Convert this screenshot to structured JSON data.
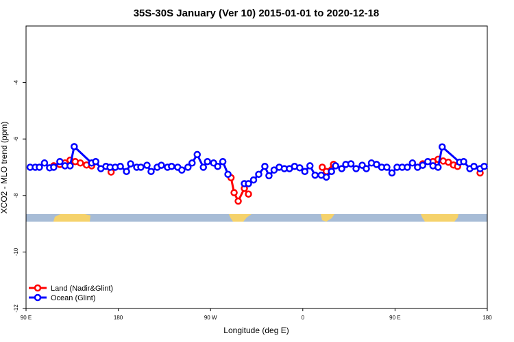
{
  "chart_data": {
    "type": "line",
    "title": "35S-30S January (Ver 10)   2015-01-01 to 2020-12-18",
    "x_label": "Longitude (deg E)",
    "y_label": "XCO2 - MLO trend (ppm)",
    "xlim": [
      90,
      540
    ],
    "xticks": [
      {
        "value": 90,
        "label": "90 E"
      },
      180,
      {
        "value": 270,
        "label": "90 W"
      },
      {
        "value": 360,
        "label": "0"
      },
      {
        "value": 450,
        "label": "90 E"
      },
      {
        "value": 540,
        "label": "180"
      }
    ],
    "ylim": [
      -12,
      -2
    ],
    "yticks": [
      -12,
      -10,
      -8,
      -6,
      -4
    ],
    "legend": "bottom-left",
    "series": [
      {
        "name": "Land (Nadir&Glint)",
        "color": "#ff0000",
        "x": [
          117,
          123,
          128,
          133,
          138,
          143,
          149,
          154,
          null,
          173,
          null,
          290,
          293,
          297,
          303,
          307,
          null,
          379,
          383,
          390,
          null,
          477,
          487,
          492,
          497,
          502,
          507,
          511,
          null,
          533
        ],
        "values": [
          -6.95,
          -6.9,
          -6.85,
          -6.75,
          -6.8,
          -6.85,
          -6.92,
          -6.95,
          null,
          -7.17,
          null,
          -7.37,
          -7.9,
          -8.2,
          -7.75,
          -7.95,
          null,
          -7.0,
          -7.15,
          -6.9,
          null,
          -6.88,
          -6.8,
          -6.72,
          -6.78,
          -6.82,
          -6.92,
          -6.97,
          null,
          -7.2
        ]
      },
      {
        "name": "Ocean (Glint)",
        "color": "#0000ff",
        "x": [
          94,
          99,
          103,
          108,
          113,
          117,
          123,
          128,
          133,
          137,
          154,
          158,
          163,
          168,
          172,
          177,
          182,
          188,
          192,
          198,
          202,
          208,
          212,
          218,
          222,
          228,
          232,
          238,
          242,
          248,
          252,
          257,
          263,
          267,
          273,
          277,
          282,
          287,
          null,
          303,
          307,
          312,
          317,
          323,
          327,
          332,
          337,
          342,
          347,
          352,
          357,
          362,
          367,
          372,
          378,
          383,
          388,
          392,
          398,
          402,
          407,
          412,
          418,
          422,
          427,
          432,
          437,
          442,
          447,
          452,
          457,
          462,
          467,
          472,
          477,
          482,
          487,
          492,
          496,
          513,
          517,
          523,
          527,
          533,
          537
        ],
        "values": [
          -7.0,
          -7.0,
          -7.0,
          -6.85,
          -7.02,
          -7.0,
          -6.8,
          -6.95,
          -6.95,
          -6.27,
          -6.85,
          -6.8,
          -7.05,
          -6.97,
          -7.0,
          -7.0,
          -6.97,
          -7.15,
          -6.88,
          -7.0,
          -7.0,
          -6.93,
          -7.15,
          -7.0,
          -6.93,
          -7.0,
          -6.97,
          -7.0,
          -7.1,
          -7.0,
          -6.85,
          -6.55,
          -7.0,
          -6.8,
          -6.85,
          -6.97,
          -6.8,
          -7.25,
          null,
          -7.58,
          -7.58,
          -7.45,
          -7.25,
          -6.97,
          -7.3,
          -7.1,
          -7.0,
          -7.05,
          -7.05,
          -6.97,
          -7.02,
          -7.15,
          -6.95,
          -7.28,
          -7.28,
          -7.35,
          -7.15,
          -6.95,
          -7.05,
          -6.9,
          -6.88,
          -7.05,
          -6.93,
          -7.05,
          -6.85,
          -6.9,
          -7.0,
          -7.0,
          -7.2,
          -7.0,
          -7.0,
          -7.0,
          -6.85,
          -7.0,
          -6.93,
          -6.8,
          -6.95,
          -7.0,
          -6.28,
          -6.82,
          -6.8,
          -7.05,
          -6.97,
          -7.05,
          -6.97
        ]
      }
    ]
  }
}
